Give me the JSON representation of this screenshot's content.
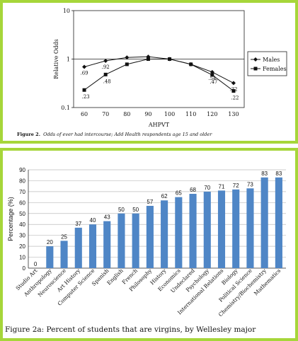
{
  "chart_data": [
    {
      "type": "line",
      "scale": "log",
      "x": [
        60,
        70,
        80,
        90,
        100,
        110,
        120,
        130
      ],
      "xlabel": "AHPVT",
      "ylabel": "Relative Odds",
      "ylim": [
        0.1,
        10
      ],
      "yticks": [
        "10",
        "1",
        "0.1"
      ],
      "legend_position": "right",
      "series": [
        {
          "name": "Males",
          "marker": "diamond",
          "values": [
            0.69,
            0.92,
            1.08,
            1.12,
            1.0,
            0.78,
            0.54,
            0.32
          ],
          "labels": [
            ".69",
            ".92",
            "",
            "",
            "",
            "",
            ".54",
            ".32"
          ]
        },
        {
          "name": "Females",
          "marker": "square",
          "values": [
            0.23,
            0.48,
            0.78,
            1.0,
            1.0,
            0.78,
            0.47,
            0.22
          ],
          "labels": [
            ".23",
            ".48",
            "",
            "",
            "",
            "",
            ".47",
            ".22"
          ]
        }
      ],
      "caption_label": "Figure 2.",
      "caption_text": "Odds of ever had intercourse; Add Health respondents age 15 and older"
    },
    {
      "type": "bar",
      "ylabel": "Percentage (%)",
      "ylim": [
        0,
        90
      ],
      "yticks": [
        0,
        10,
        20,
        30,
        40,
        50,
        60,
        70,
        80,
        90
      ],
      "grid": true,
      "bar_color": "#4f86c6",
      "categories": [
        "Studio Art",
        "Anthropology",
        "Neuroscience",
        "Art History",
        "Computer Science",
        "Spanish",
        "English",
        "French",
        "Philosophy",
        "History",
        "Economics",
        "Undeclared",
        "Psychology",
        "International Relations",
        "Biology",
        "Political Science",
        "Chemistry/Biochemistry",
        "Mathematics"
      ],
      "values": [
        0,
        20,
        25,
        37,
        40,
        43,
        50,
        50,
        57,
        62,
        65,
        68,
        70,
        71,
        72,
        73,
        83,
        83
      ],
      "caption": "Figure 2a: Percent of students that are virgins, by Wellesley major"
    }
  ]
}
